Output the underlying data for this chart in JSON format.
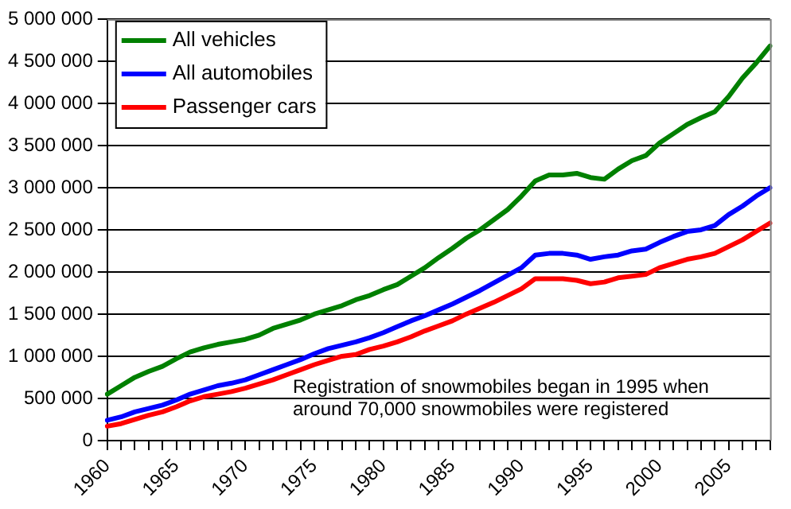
{
  "chart_data": {
    "type": "line",
    "categories": [
      "1960",
      null,
      null,
      null,
      null,
      "1965",
      null,
      null,
      null,
      null,
      "1970",
      null,
      null,
      null,
      null,
      "1975",
      null,
      null,
      null,
      null,
      "1980",
      null,
      null,
      null,
      null,
      "1985",
      null,
      null,
      null,
      null,
      "1990",
      null,
      null,
      null,
      null,
      "1995",
      null,
      null,
      null,
      null,
      "2000",
      null,
      null,
      null,
      null,
      "2005",
      null,
      null,
      null
    ],
    "series": [
      {
        "name": "All vehicles",
        "color": "#008000",
        "values": [
          550000,
          650000,
          750000,
          820000,
          880000,
          970000,
          1050000,
          1100000,
          1140000,
          1170000,
          1200000,
          1250000,
          1330000,
          1380000,
          1430000,
          1500000,
          1550000,
          1600000,
          1670000,
          1720000,
          1790000,
          1850000,
          1950000,
          2050000,
          2170000,
          2280000,
          2400000,
          2500000,
          2620000,
          2740000,
          2900000,
          3080000,
          3150000,
          3150000,
          3170000,
          3120000,
          3100000,
          3220000,
          3320000,
          3380000,
          3530000,
          3640000,
          3750000,
          3830000,
          3900000,
          4080000,
          4300000,
          4480000,
          4680000
        ]
      },
      {
        "name": "All automobiles",
        "color": "#0000ff",
        "values": [
          240000,
          280000,
          340000,
          380000,
          420000,
          480000,
          550000,
          600000,
          650000,
          680000,
          720000,
          780000,
          840000,
          900000,
          960000,
          1030000,
          1090000,
          1130000,
          1170000,
          1220000,
          1280000,
          1350000,
          1420000,
          1480000,
          1550000,
          1620000,
          1700000,
          1780000,
          1870000,
          1960000,
          2050000,
          2200000,
          2220000,
          2220000,
          2200000,
          2150000,
          2180000,
          2200000,
          2250000,
          2270000,
          2350000,
          2420000,
          2480000,
          2500000,
          2550000,
          2680000,
          2780000,
          2900000,
          3000000
        ]
      },
      {
        "name": "Passenger cars",
        "color": "#ff0000",
        "values": [
          170000,
          200000,
          250000,
          300000,
          340000,
          400000,
          470000,
          520000,
          550000,
          580000,
          620000,
          670000,
          720000,
          780000,
          840000,
          900000,
          950000,
          1000000,
          1020000,
          1080000,
          1120000,
          1170000,
          1230000,
          1300000,
          1360000,
          1420000,
          1500000,
          1570000,
          1640000,
          1720000,
          1800000,
          1920000,
          1920000,
          1920000,
          1900000,
          1860000,
          1880000,
          1930000,
          1950000,
          1970000,
          2050000,
          2100000,
          2150000,
          2180000,
          2220000,
          2300000,
          2380000,
          2480000,
          2580000
        ]
      }
    ],
    "ylim": [
      0,
      5000000
    ],
    "yticks": [
      {
        "value": 0,
        "label": "0"
      },
      {
        "value": 500000,
        "label": "500 000"
      },
      {
        "value": 1000000,
        "label": "1 000 000"
      },
      {
        "value": 1500000,
        "label": "1 500 000"
      },
      {
        "value": 2000000,
        "label": "2 000 000"
      },
      {
        "value": 2500000,
        "label": "2 500 000"
      },
      {
        "value": 3000000,
        "label": "3 000 000"
      },
      {
        "value": 3500000,
        "label": "3 500 000"
      },
      {
        "value": 4000000,
        "label": "4 000 000"
      },
      {
        "value": 4500000,
        "label": "4 500 000"
      },
      {
        "value": 5000000,
        "label": "5 000 000"
      }
    ],
    "grid": "y",
    "legend": "top left",
    "marker": "none",
    "line_style": "solid",
    "annotations": [
      "Registration of snowmobiles began in 1995 when\naround 70,000 snowmobiles were registered"
    ]
  }
}
